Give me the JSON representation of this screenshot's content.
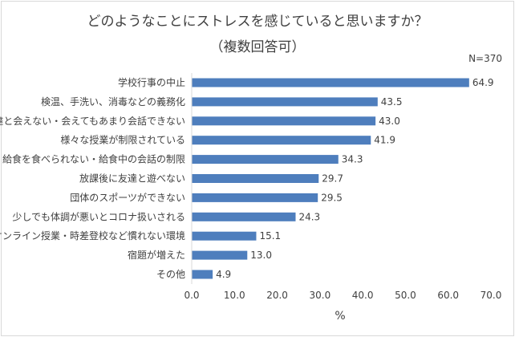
{
  "chart_data": {
    "type": "bar",
    "orientation": "horizontal",
    "title": "どのようなことにストレスを感じていると思いますか？",
    "subtitle": "（複数回答可）",
    "note": "N=370",
    "categories": [
      "学校行事の中止",
      "検温、手洗い、消毒などの義務化",
      "友達と会えない・会えてもあまり会話できない",
      "様々な授業が制限されている",
      "給食を食べられない・給食中の会話の制限",
      "放課後に友達と遊べない",
      "団体のスポーツができない",
      "少しでも体調が悪いとコロナ扱いされる",
      "オンライン授業・時差登校など慣れない環境",
      "宿題が増えた",
      "その他"
    ],
    "values": [
      64.9,
      43.5,
      43.0,
      41.9,
      34.3,
      29.7,
      29.5,
      24.3,
      15.1,
      13.0,
      4.9
    ],
    "value_labels": [
      "64.9",
      "43.5",
      "43.0",
      "41.9",
      "34.3",
      "29.7",
      "29.5",
      "24.3",
      "15.1",
      "13.0",
      "4.9"
    ],
    "xlabel": "%",
    "xlim": [
      0,
      70
    ],
    "xticks": [
      "0.0",
      "10.0",
      "20.0",
      "30.0",
      "40.0",
      "50.0",
      "60.0",
      "70.0"
    ],
    "grid": false,
    "bar_color": "#4e7ebd"
  }
}
